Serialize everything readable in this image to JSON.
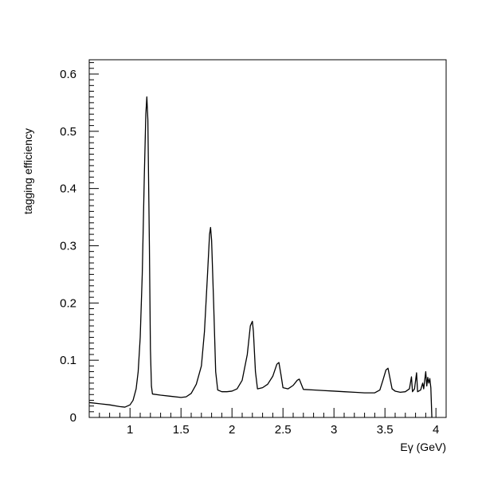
{
  "chart_data": {
    "type": "line",
    "title": "",
    "xlabel": "Eγ (GeV)",
    "ylabel": "tagging efficiency",
    "xlim": [
      0.6,
      4.1
    ],
    "ylim": [
      0,
      0.625
    ],
    "grid": false,
    "legend": "none",
    "line_color": "#000000",
    "x_ticks": [
      1,
      1.5,
      2,
      2.5,
      3,
      3.5,
      4
    ],
    "x_tick_labels": [
      "1",
      "1.5",
      "2",
      "2.5",
      "3",
      "3.5",
      "4"
    ],
    "y_ticks": [
      0,
      0.1,
      0.2,
      0.3,
      0.4,
      0.5,
      0.6
    ],
    "y_tick_labels": [
      "0",
      "0.1",
      "0.2",
      "0.3",
      "0.4",
      "0.5",
      "0.6"
    ],
    "series": [
      {
        "points": [
          [
            0.6,
            0.026
          ],
          [
            0.7,
            0.024
          ],
          [
            0.8,
            0.022
          ],
          [
            0.9,
            0.019
          ],
          [
            0.95,
            0.018
          ],
          [
            1.0,
            0.022
          ],
          [
            1.03,
            0.03
          ],
          [
            1.06,
            0.05
          ],
          [
            1.08,
            0.08
          ],
          [
            1.1,
            0.14
          ],
          [
            1.12,
            0.25
          ],
          [
            1.14,
            0.42
          ],
          [
            1.155,
            0.53
          ],
          [
            1.165,
            0.56
          ],
          [
            1.175,
            0.52
          ],
          [
            1.19,
            0.3
          ],
          [
            1.2,
            0.12
          ],
          [
            1.21,
            0.055
          ],
          [
            1.22,
            0.041
          ],
          [
            1.3,
            0.039
          ],
          [
            1.4,
            0.037
          ],
          [
            1.5,
            0.035
          ],
          [
            1.55,
            0.036
          ],
          [
            1.6,
            0.042
          ],
          [
            1.65,
            0.058
          ],
          [
            1.7,
            0.09
          ],
          [
            1.73,
            0.15
          ],
          [
            1.76,
            0.25
          ],
          [
            1.78,
            0.32
          ],
          [
            1.79,
            0.332
          ],
          [
            1.8,
            0.31
          ],
          [
            1.82,
            0.2
          ],
          [
            1.84,
            0.08
          ],
          [
            1.86,
            0.048
          ],
          [
            1.9,
            0.045
          ],
          [
            1.95,
            0.045
          ],
          [
            2.0,
            0.046
          ],
          [
            2.05,
            0.05
          ],
          [
            2.1,
            0.065
          ],
          [
            2.15,
            0.11
          ],
          [
            2.18,
            0.16
          ],
          [
            2.2,
            0.168
          ],
          [
            2.21,
            0.15
          ],
          [
            2.23,
            0.08
          ],
          [
            2.25,
            0.05
          ],
          [
            2.3,
            0.052
          ],
          [
            2.35,
            0.058
          ],
          [
            2.4,
            0.072
          ],
          [
            2.44,
            0.093
          ],
          [
            2.46,
            0.096
          ],
          [
            2.48,
            0.075
          ],
          [
            2.5,
            0.052
          ],
          [
            2.55,
            0.05
          ],
          [
            2.6,
            0.056
          ],
          [
            2.64,
            0.065
          ],
          [
            2.66,
            0.067
          ],
          [
            2.68,
            0.058
          ],
          [
            2.7,
            0.049
          ],
          [
            2.8,
            0.048
          ],
          [
            2.9,
            0.047
          ],
          [
            3.0,
            0.046
          ],
          [
            3.1,
            0.045
          ],
          [
            3.2,
            0.044
          ],
          [
            3.3,
            0.043
          ],
          [
            3.4,
            0.043
          ],
          [
            3.45,
            0.048
          ],
          [
            3.48,
            0.065
          ],
          [
            3.51,
            0.083
          ],
          [
            3.53,
            0.086
          ],
          [
            3.55,
            0.068
          ],
          [
            3.57,
            0.05
          ],
          [
            3.6,
            0.046
          ],
          [
            3.65,
            0.044
          ],
          [
            3.7,
            0.045
          ],
          [
            3.74,
            0.05
          ],
          [
            3.76,
            0.071
          ],
          [
            3.77,
            0.045
          ],
          [
            3.79,
            0.05
          ],
          [
            3.81,
            0.078
          ],
          [
            3.82,
            0.045
          ],
          [
            3.85,
            0.048
          ],
          [
            3.87,
            0.06
          ],
          [
            3.88,
            0.05
          ],
          [
            3.9,
            0.08
          ],
          [
            3.91,
            0.055
          ],
          [
            3.92,
            0.07
          ],
          [
            3.93,
            0.06
          ],
          [
            3.94,
            0.068
          ],
          [
            3.95,
            0.052
          ],
          [
            3.96,
            0.0
          ]
        ]
      }
    ]
  }
}
